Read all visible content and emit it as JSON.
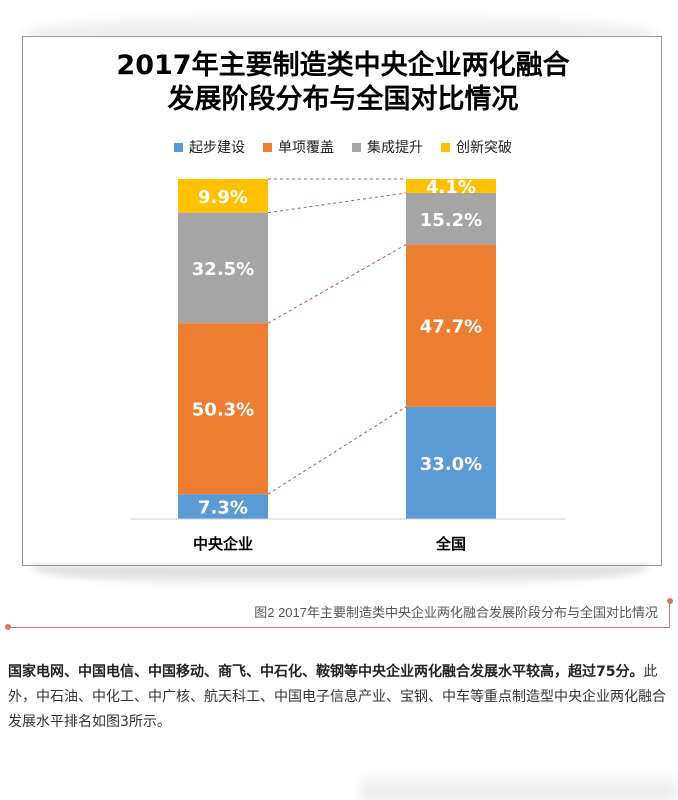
{
  "title": {
    "line1": "2017年主要制造类中央企业两化融合",
    "line2": "发展阶段分布与全国对比情况"
  },
  "chart_data": {
    "type": "bar",
    "stacked": true,
    "categories": [
      "中央企业",
      "全国"
    ],
    "series": [
      {
        "name": "起步建设",
        "color": "#5b9bd5",
        "values": [
          7.3,
          33.0
        ],
        "labels": [
          "7.3%",
          "33.0%"
        ]
      },
      {
        "name": "单项覆盖",
        "color": "#ed7d31",
        "values": [
          50.3,
          47.7
        ],
        "labels": [
          "50.3%",
          "47.7%"
        ]
      },
      {
        "name": "集成提升",
        "color": "#a5a5a5",
        "values": [
          32.5,
          15.2
        ],
        "labels": [
          "32.5%",
          "15.2%"
        ]
      },
      {
        "name": "创新突破",
        "color": "#ffc000",
        "values": [
          9.9,
          4.1
        ],
        "labels": [
          "9.9%",
          "4.1%"
        ]
      }
    ],
    "ylim": [
      0,
      100
    ],
    "legend_position": "top",
    "grid": false,
    "connector_lines": "dashed-red"
  },
  "caption": "图2 2017年主要制造类中央企业两化融合发展阶段分布与全国对比情况",
  "body": {
    "bold": "国家电网、中国电信、中国移动、商飞、中石化、鞍钢等中央企业两化融合发展水平较高，超过75分。",
    "normal": "此外，中石油、中化工、中广核、航天科工、中国电子信息产业、宝钢、中车等重点制造型中央企业两化融合发展水平排名如图3所示。"
  }
}
